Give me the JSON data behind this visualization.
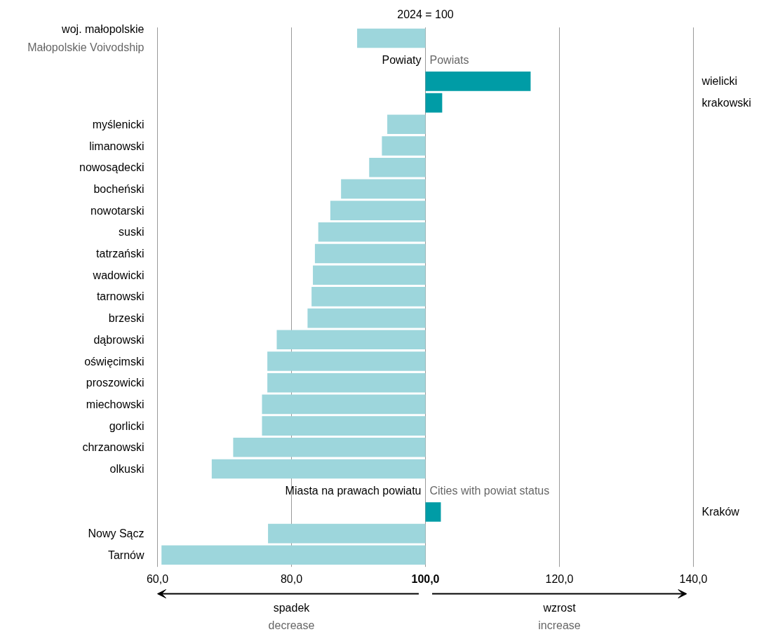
{
  "chart_data": {
    "type": "bar",
    "orientation": "horizontal",
    "subtitle": "2024 = 100",
    "categories": [
      "woj. małopolskie\nMałopolskie Voivodship",
      null,
      "wielicki",
      "krakowski",
      "myślenicki",
      "limanowski",
      "nowosądecki",
      "bocheński",
      "nowotarski",
      "suski",
      "tatrzański",
      "wadowicki",
      "tarnowski",
      "brzeski",
      "dąbrowski",
      "oświęcimski",
      "proszowicki",
      "miechowski",
      "gorlicki",
      "chrzanowski",
      "olkuski",
      null,
      "Kraków",
      "Nowy Sącz",
      "Tarnów"
    ],
    "base": [
      100,
      null,
      100,
      100,
      100,
      100,
      100,
      100,
      100,
      100,
      100,
      100,
      100,
      100,
      100,
      100,
      100,
      100,
      100,
      100,
      100,
      null,
      100,
      100,
      100
    ],
    "values": [
      -10.2,
      null,
      15.7,
      2.5,
      -5.7,
      -6.5,
      -8.4,
      -12.6,
      -14.2,
      -16.0,
      -16.5,
      -16.8,
      -17.0,
      -17.6,
      -22.2,
      -23.6,
      -23.6,
      -24.4,
      -24.4,
      -28.7,
      -31.9,
      null,
      2.3,
      -23.5,
      -39.4
    ],
    "colors": [
      "#9dd6dc",
      null,
      "#009ca6",
      "#009ca6",
      "#9dd6dc",
      "#9dd6dc",
      "#9dd6dc",
      "#9dd6dc",
      "#9dd6dc",
      "#9dd6dc",
      "#9dd6dc",
      "#9dd6dc",
      "#9dd6dc",
      "#9dd6dc",
      "#9dd6dc",
      "#9dd6dc",
      "#9dd6dc",
      "#9dd6dc",
      "#9dd6dc",
      "#9dd6dc",
      "#9dd6dc",
      null,
      "#009ca6",
      "#9dd6dc",
      "#9dd6dc"
    ],
    "xlim": [
      60,
      140
    ],
    "xticks": [
      {
        "value": 60,
        "label": "60,0"
      },
      {
        "value": 80,
        "label": "80,0"
      },
      {
        "value": 100,
        "label": "100,0"
      },
      {
        "value": 120,
        "label": "120,0"
      },
      {
        "value": 140,
        "label": "140,0"
      }
    ],
    "grid": "x",
    "annotations": [
      "Powiaty",
      "Powiats",
      "Miasta na prawach powiatu",
      "Cities with powiat status",
      "spadek",
      "decrease",
      "wzrost",
      "increase"
    ]
  }
}
